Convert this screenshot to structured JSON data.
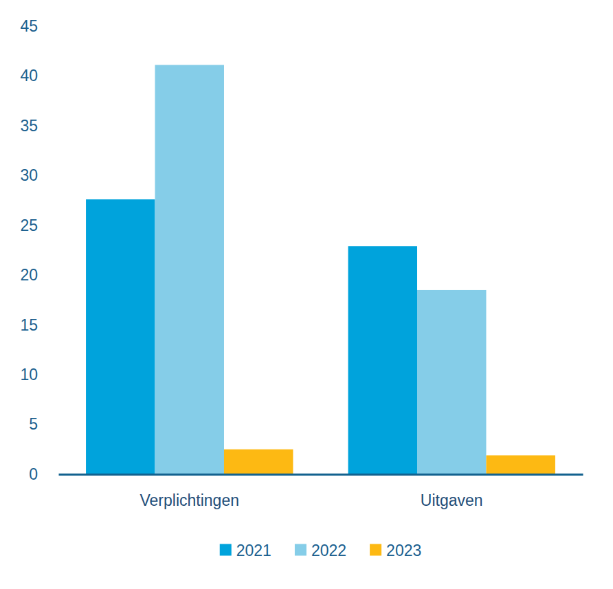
{
  "chart_data": {
    "type": "bar",
    "categories": [
      "Verplichtingen",
      "Uitgaven"
    ],
    "series": [
      {
        "name": "2021",
        "color": "#00a3dc",
        "values": [
          27.6,
          22.9
        ]
      },
      {
        "name": "2022",
        "color": "#85cde8",
        "values": [
          41.1,
          18.5
        ]
      },
      {
        "name": "2023",
        "color": "#fdb913",
        "values": [
          2.5,
          1.9
        ]
      }
    ],
    "ylim": [
      0,
      45
    ],
    "yticks": [
      0,
      5,
      10,
      15,
      20,
      25,
      30,
      35,
      40,
      45
    ],
    "grid": false,
    "legend": "bottom"
  }
}
